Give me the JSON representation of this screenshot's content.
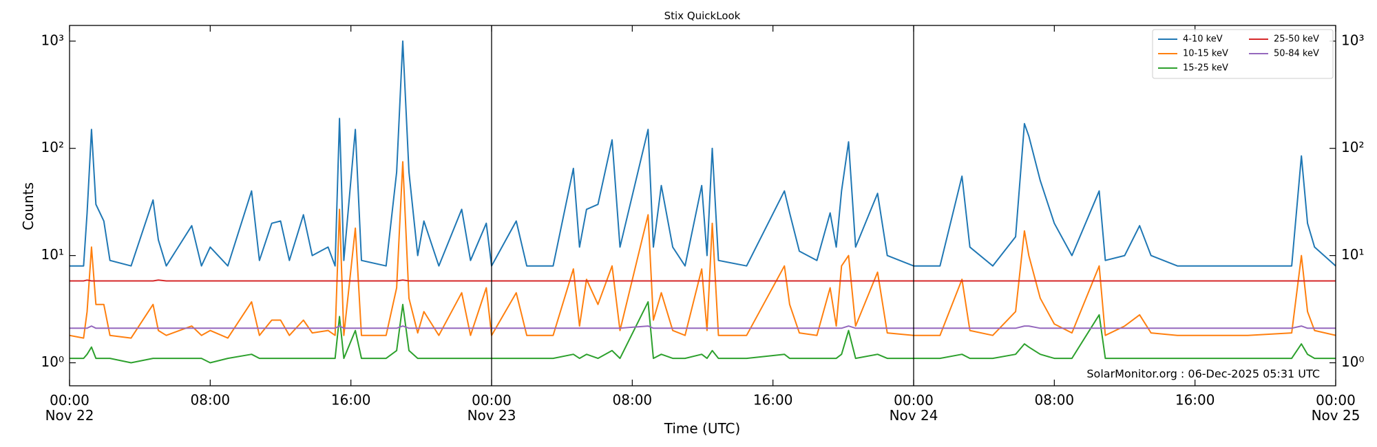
{
  "chart_data": {
    "type": "line",
    "title": "Stix QuickLook",
    "xlabel": "Time (UTC)",
    "ylabel": "Counts",
    "annotation": "SolarMonitor.org : 06-Dec-2025 05:31 UTC",
    "yscale": "log",
    "legend": "upper right",
    "x": [
      "Nov 22 00:00",
      "Nov 22 00:48",
      "Nov 22 01:00",
      "Nov 22 01:15",
      "Nov 22 01:30",
      "Nov 22 01:57",
      "Nov 22 02:18",
      "Nov 22 03:30",
      "Nov 22 04:45",
      "Nov 22 05:03",
      "Nov 22 05:30",
      "Nov 22 06:57",
      "Nov 22 07:30",
      "Nov 22 08:00",
      "Nov 22 09:00",
      "Nov 22 10:21",
      "Nov 22 10:48",
      "Nov 22 11:30",
      "Nov 22 12:00",
      "Nov 22 12:30",
      "Nov 22 13:18",
      "Nov 22 13:48",
      "Nov 22 14:42",
      "Nov 22 15:06",
      "Nov 22 15:21",
      "Nov 22 15:36",
      "Nov 22 16:15",
      "Nov 22 16:36",
      "Nov 22 18:00",
      "Nov 22 18:36",
      "Nov 22 18:57",
      "Nov 22 19:18",
      "Nov 22 19:48",
      "Nov 22 20:09",
      "Nov 22 21:00",
      "Nov 22 22:18",
      "Nov 22 22:48",
      "Nov 22 23:42",
      "Nov 23 00:00",
      "Nov 23 01:24",
      "Nov 23 02:00",
      "Nov 23 03:30",
      "Nov 23 04:39",
      "Nov 23 05:00",
      "Nov 23 05:24",
      "Nov 23 06:03",
      "Nov 23 06:51",
      "Nov 23 07:18",
      "Nov 23 08:54",
      "Nov 23 09:12",
      "Nov 23 09:39",
      "Nov 23 10:18",
      "Nov 23 11:00",
      "Nov 23 11:57",
      "Nov 23 12:15",
      "Nov 23 12:33",
      "Nov 23 12:54",
      "Nov 23 14:30",
      "Nov 23 16:39",
      "Nov 23 16:57",
      "Nov 23 17:30",
      "Nov 23 18:30",
      "Nov 23 19:15",
      "Nov 23 19:36",
      "Nov 23 19:54",
      "Nov 23 20:18",
      "Nov 23 20:42",
      "Nov 23 21:57",
      "Nov 23 22:30",
      "Nov 24 00:00",
      "Nov 24 01:30",
      "Nov 24 02:45",
      "Nov 24 03:12",
      "Nov 24 04:30",
      "Nov 24 05:48",
      "Nov 24 06:18",
      "Nov 24 06:33",
      "Nov 24 07:12",
      "Nov 24 08:00",
      "Nov 24 09:00",
      "Nov 24 10:33",
      "Nov 24 10:54",
      "Nov 24 12:00",
      "Nov 24 12:51",
      "Nov 24 13:30",
      "Nov 24 15:00",
      "Nov 24 17:00",
      "Nov 24 19:00",
      "Nov 24 21:30",
      "Nov 24 22:03",
      "Nov 24 22:24",
      "Nov 24 22:48",
      "Nov 25 00:00"
    ],
    "series": [
      {
        "name": "4-10 keV",
        "color": "#1f77b4",
        "values": [
          8,
          8,
          25,
          150,
          30,
          21,
          9,
          8,
          33,
          14,
          8,
          19,
          8,
          12,
          8,
          40,
          9,
          20,
          21,
          9,
          24,
          10,
          12,
          8,
          190,
          9,
          150,
          9,
          8,
          60,
          1000,
          60,
          10,
          21,
          8,
          27,
          9,
          20,
          8,
          21,
          8,
          8,
          65,
          12,
          27,
          30,
          120,
          12,
          150,
          12,
          45,
          12,
          8,
          45,
          10,
          100,
          9,
          8,
          40,
          25,
          11,
          9,
          25,
          12,
          40,
          115,
          12,
          38,
          10,
          8,
          8,
          55,
          12,
          8,
          15,
          170,
          130,
          50,
          20,
          10,
          40,
          9,
          10,
          19,
          10,
          8,
          8,
          8,
          8,
          85,
          20,
          12,
          8
        ]
      },
      {
        "name": "10-15 keV",
        "color": "#ff7f0e",
        "values": [
          1.8,
          1.7,
          3.0,
          12,
          3.5,
          3.5,
          1.8,
          1.7,
          3.5,
          2.0,
          1.8,
          2.2,
          1.8,
          2.0,
          1.7,
          3.7,
          1.8,
          2.5,
          2.5,
          1.8,
          2.5,
          1.9,
          2.0,
          1.8,
          27,
          1.8,
          18,
          1.8,
          1.8,
          5,
          75,
          4,
          1.9,
          3.0,
          1.8,
          4.5,
          1.8,
          5,
          1.8,
          4.5,
          1.8,
          1.8,
          7.5,
          2.2,
          6,
          3.5,
          8,
          2.0,
          24,
          2.5,
          4.5,
          2.0,
          1.8,
          7.5,
          2.0,
          20,
          1.8,
          1.8,
          8,
          3.5,
          1.9,
          1.8,
          5,
          2.2,
          8,
          10,
          2.2,
          7,
          1.9,
          1.8,
          1.8,
          6,
          2.0,
          1.8,
          3,
          17,
          10,
          4,
          2.3,
          1.9,
          8,
          1.8,
          2.2,
          2.8,
          1.9,
          1.8,
          1.8,
          1.8,
          1.9,
          10,
          3,
          2.0,
          1.8
        ]
      },
      {
        "name": "15-25 keV",
        "color": "#2ca02c",
        "values": [
          1.1,
          1.1,
          1.2,
          1.4,
          1.1,
          1.1,
          1.1,
          1.0,
          1.1,
          1.1,
          1.1,
          1.1,
          1.1,
          1.0,
          1.1,
          1.2,
          1.1,
          1.1,
          1.1,
          1.1,
          1.1,
          1.1,
          1.1,
          1.1,
          2.7,
          1.1,
          2.0,
          1.1,
          1.1,
          1.3,
          3.5,
          1.3,
          1.1,
          1.1,
          1.1,
          1.1,
          1.1,
          1.1,
          1.1,
          1.1,
          1.1,
          1.1,
          1.2,
          1.1,
          1.2,
          1.1,
          1.3,
          1.1,
          3.7,
          1.1,
          1.2,
          1.1,
          1.1,
          1.2,
          1.1,
          1.3,
          1.1,
          1.1,
          1.2,
          1.1,
          1.1,
          1.1,
          1.1,
          1.1,
          1.2,
          2.0,
          1.1,
          1.2,
          1.1,
          1.1,
          1.1,
          1.2,
          1.1,
          1.1,
          1.2,
          1.5,
          1.4,
          1.2,
          1.1,
          1.1,
          2.8,
          1.1,
          1.1,
          1.1,
          1.1,
          1.1,
          1.1,
          1.1,
          1.1,
          1.5,
          1.2,
          1.1,
          1.1
        ]
      },
      {
        "name": "25-50 keV",
        "color": "#d62728",
        "values": [
          5.8,
          5.8,
          5.9,
          5.8,
          5.8,
          5.8,
          5.8,
          5.8,
          5.8,
          5.9,
          5.8,
          5.8,
          5.8,
          5.8,
          5.8,
          5.8,
          5.8,
          5.8,
          5.8,
          5.8,
          5.8,
          5.8,
          5.8,
          5.8,
          5.8,
          5.8,
          5.8,
          5.8,
          5.8,
          5.8,
          5.9,
          5.8,
          5.8,
          5.8,
          5.8,
          5.8,
          5.8,
          5.8,
          5.8,
          5.8,
          5.8,
          5.8,
          5.8,
          5.8,
          5.8,
          5.8,
          5.8,
          5.8,
          5.8,
          5.8,
          5.8,
          5.8,
          5.8,
          5.8,
          5.8,
          5.8,
          5.8,
          5.8,
          5.8,
          5.8,
          5.8,
          5.8,
          5.8,
          5.8,
          5.8,
          5.8,
          5.8,
          5.8,
          5.8,
          5.8,
          5.8,
          5.8,
          5.8,
          5.8,
          5.8,
          5.8,
          5.8,
          5.8,
          5.8,
          5.8,
          5.8,
          5.8,
          5.8,
          5.8,
          5.8,
          5.8,
          5.8,
          5.8,
          5.8,
          5.8,
          5.8,
          5.8,
          5.8
        ]
      },
      {
        "name": "50-84 keV",
        "color": "#9467bd",
        "values": [
          2.1,
          2.1,
          2.1,
          2.2,
          2.1,
          2.1,
          2.1,
          2.1,
          2.1,
          2.1,
          2.1,
          2.1,
          2.1,
          2.1,
          2.1,
          2.1,
          2.1,
          2.1,
          2.1,
          2.1,
          2.1,
          2.1,
          2.1,
          2.1,
          2.2,
          2.1,
          2.1,
          2.1,
          2.1,
          2.1,
          2.2,
          2.1,
          2.1,
          2.1,
          2.1,
          2.1,
          2.1,
          2.1,
          2.1,
          2.1,
          2.1,
          2.1,
          2.1,
          2.1,
          2.1,
          2.1,
          2.1,
          2.1,
          2.2,
          2.1,
          2.1,
          2.1,
          2.1,
          2.1,
          2.1,
          2.1,
          2.1,
          2.1,
          2.1,
          2.1,
          2.1,
          2.1,
          2.1,
          2.1,
          2.1,
          2.2,
          2.1,
          2.1,
          2.1,
          2.1,
          2.1,
          2.1,
          2.1,
          2.1,
          2.1,
          2.2,
          2.2,
          2.1,
          2.1,
          2.1,
          2.1,
          2.1,
          2.1,
          2.1,
          2.1,
          2.1,
          2.1,
          2.1,
          2.1,
          2.2,
          2.1,
          2.1,
          2.1
        ]
      }
    ],
    "xlim": [
      "Nov 22 00:00",
      "Nov 25 00:00"
    ],
    "xticks": [
      {
        "value": "Nov 22 00:00",
        "label": "00:00\nNov 22"
      },
      {
        "value": "Nov 22 08:00",
        "label": "08:00"
      },
      {
        "value": "Nov 22 16:00",
        "label": "16:00"
      },
      {
        "value": "Nov 23 00:00",
        "label": "00:00\nNov 23"
      },
      {
        "value": "Nov 23 08:00",
        "label": "08:00"
      },
      {
        "value": "Nov 23 16:00",
        "label": "16:00"
      },
      {
        "value": "Nov 24 00:00",
        "label": "00:00\nNov 24"
      },
      {
        "value": "Nov 24 08:00",
        "label": "08:00"
      },
      {
        "value": "Nov 24 16:00",
        "label": "16:00"
      },
      {
        "value": "Nov 25 00:00",
        "label": "00:00\nNov 25"
      }
    ],
    "vlines": [
      "Nov 23 00:00",
      "Nov 24 00:00"
    ],
    "ylim": [
      0.61,
      1400
    ],
    "yticks": [
      {
        "value": 1,
        "label": "10⁰"
      },
      {
        "value": 10,
        "label": "10¹"
      },
      {
        "value": 100,
        "label": "10²"
      },
      {
        "value": 1000,
        "label": "10³"
      }
    ]
  }
}
